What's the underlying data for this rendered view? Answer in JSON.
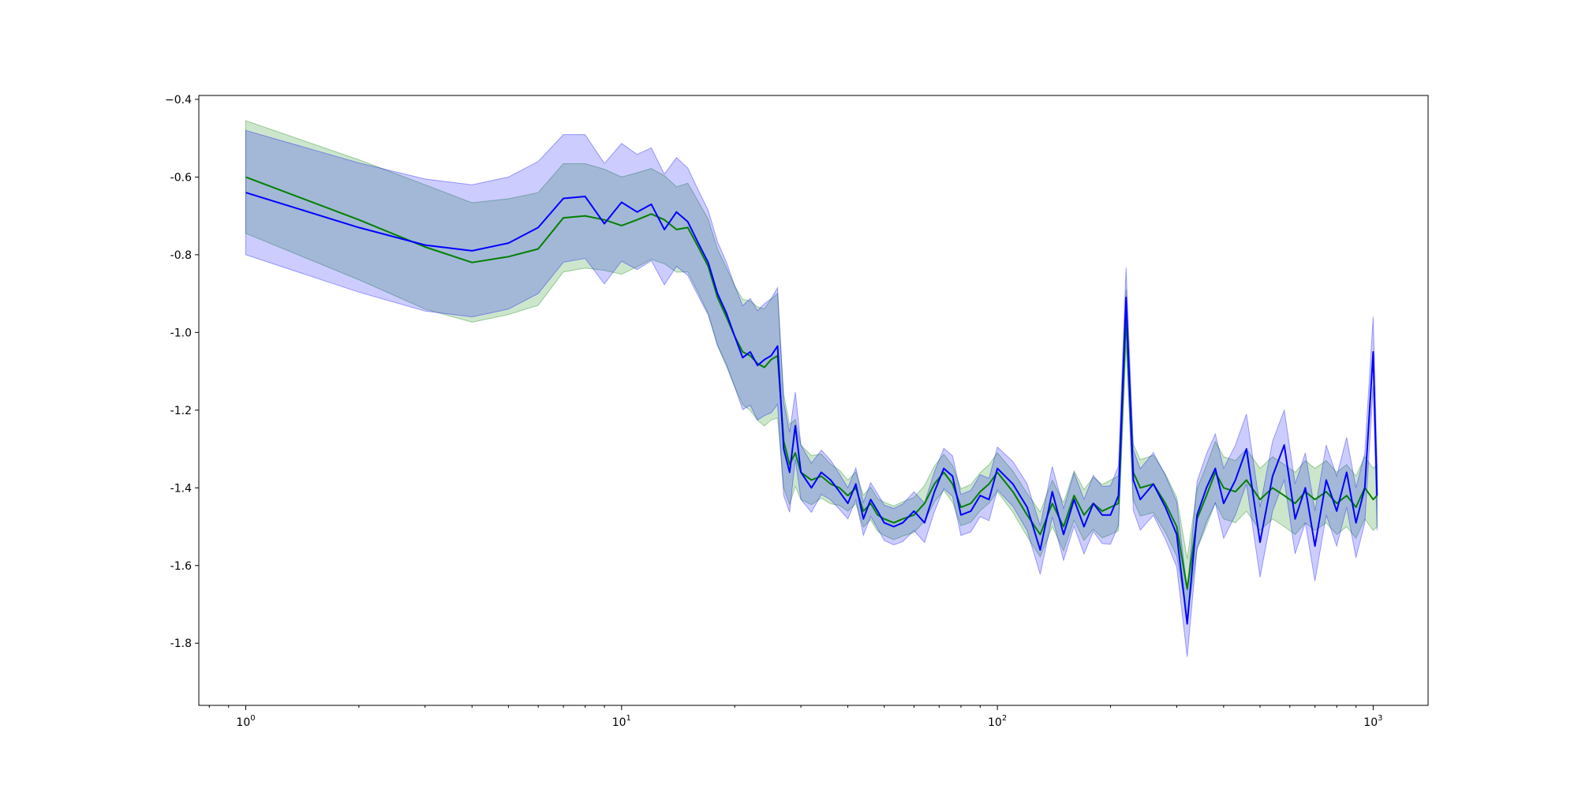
{
  "chart_data": {
    "type": "line",
    "title": "",
    "xlabel": "",
    "ylabel": "",
    "xscale": "log",
    "xlim": [
      0.75,
      1400
    ],
    "ylim": [
      -1.96,
      -0.39
    ],
    "grid": false,
    "legend": "none",
    "yticks": [
      -0.4,
      -0.6,
      -0.8,
      -1.0,
      -1.2,
      -1.4,
      -1.6,
      -1.8
    ],
    "ytick_labels": [
      "−0.4",
      "-0.6",
      "-0.8",
      "-1.0",
      "-1.2",
      "-1.4",
      "-1.6",
      "-1.8"
    ],
    "xticks": [
      1,
      10,
      100,
      1000
    ],
    "xtick_labels": [
      {
        "base": "10",
        "exp": "0"
      },
      {
        "base": "10",
        "exp": "1"
      },
      {
        "base": "10",
        "exp": "2"
      },
      {
        "base": "10",
        "exp": "3"
      }
    ],
    "series": [
      {
        "color": "#008000",
        "band_color": "#008000",
        "band_opacity": 0.2,
        "points": [
          [
            1,
            -0.6
          ],
          [
            2,
            -0.71
          ],
          [
            3,
            -0.78
          ],
          [
            4,
            -0.82
          ],
          [
            5,
            -0.805
          ],
          [
            6,
            -0.785
          ],
          [
            7,
            -0.705
          ],
          [
            8,
            -0.7
          ],
          [
            9,
            -0.71
          ],
          [
            10,
            -0.725
          ],
          [
            11,
            -0.71
          ],
          [
            12,
            -0.695
          ],
          [
            13,
            -0.71
          ],
          [
            14,
            -0.735
          ],
          [
            15,
            -0.73
          ],
          [
            16,
            -0.78
          ],
          [
            17,
            -0.83
          ],
          [
            18,
            -0.91
          ],
          [
            19,
            -0.96
          ],
          [
            20,
            -1.01
          ],
          [
            21,
            -1.05
          ],
          [
            22,
            -1.06
          ],
          [
            23,
            -1.08
          ],
          [
            24,
            -1.09
          ],
          [
            25,
            -1.07
          ],
          [
            26,
            -1.06
          ],
          [
            27,
            -1.28
          ],
          [
            28,
            -1.34
          ],
          [
            29,
            -1.31
          ],
          [
            30,
            -1.36
          ],
          [
            32,
            -1.38
          ],
          [
            34,
            -1.37
          ],
          [
            36,
            -1.39
          ],
          [
            38,
            -1.4
          ],
          [
            40,
            -1.42
          ],
          [
            42,
            -1.4
          ],
          [
            44,
            -1.46
          ],
          [
            46,
            -1.44
          ],
          [
            48,
            -1.47
          ],
          [
            50,
            -1.48
          ],
          [
            53,
            -1.49
          ],
          [
            56,
            -1.48
          ],
          [
            60,
            -1.47
          ],
          [
            64,
            -1.44
          ],
          [
            68,
            -1.39
          ],
          [
            72,
            -1.36
          ],
          [
            76,
            -1.39
          ],
          [
            80,
            -1.45
          ],
          [
            85,
            -1.44
          ],
          [
            90,
            -1.41
          ],
          [
            95,
            -1.39
          ],
          [
            100,
            -1.36
          ],
          [
            110,
            -1.41
          ],
          [
            120,
            -1.47
          ],
          [
            130,
            -1.52
          ],
          [
            140,
            -1.44
          ],
          [
            150,
            -1.5
          ],
          [
            160,
            -1.42
          ],
          [
            170,
            -1.47
          ],
          [
            180,
            -1.44
          ],
          [
            190,
            -1.46
          ],
          [
            200,
            -1.45
          ],
          [
            210,
            -1.44
          ],
          [
            220,
            -0.96
          ],
          [
            230,
            -1.36
          ],
          [
            240,
            -1.4
          ],
          [
            260,
            -1.39
          ],
          [
            280,
            -1.44
          ],
          [
            300,
            -1.5
          ],
          [
            320,
            -1.66
          ],
          [
            340,
            -1.48
          ],
          [
            360,
            -1.42
          ],
          [
            380,
            -1.36
          ],
          [
            400,
            -1.4
          ],
          [
            430,
            -1.41
          ],
          [
            460,
            -1.38
          ],
          [
            500,
            -1.43
          ],
          [
            540,
            -1.4
          ],
          [
            580,
            -1.42
          ],
          [
            620,
            -1.44
          ],
          [
            660,
            -1.41
          ],
          [
            700,
            -1.43
          ],
          [
            750,
            -1.41
          ],
          [
            800,
            -1.44
          ],
          [
            850,
            -1.42
          ],
          [
            900,
            -1.45
          ],
          [
            950,
            -1.4
          ],
          [
            1000,
            -1.43
          ],
          [
            1024,
            -1.42
          ]
        ],
        "band_half_width": [
          [
            1,
            0.145
          ],
          [
            3,
            0.16
          ],
          [
            6,
            0.145
          ],
          [
            9,
            0.13
          ],
          [
            14,
            0.11
          ],
          [
            20,
            0.13
          ],
          [
            26,
            0.16
          ],
          [
            27,
            0.12
          ],
          [
            30,
            0.07
          ],
          [
            40,
            0.04
          ],
          [
            60,
            0.045
          ],
          [
            100,
            0.05
          ],
          [
            200,
            0.07
          ],
          [
            400,
            0.08
          ],
          [
            1024,
            0.08
          ]
        ]
      },
      {
        "color": "#0000ff",
        "band_color": "#0000ff",
        "band_opacity": 0.2,
        "points": [
          [
            1,
            -0.64
          ],
          [
            2,
            -0.73
          ],
          [
            3,
            -0.775
          ],
          [
            4,
            -0.79
          ],
          [
            5,
            -0.77
          ],
          [
            6,
            -0.73
          ],
          [
            7,
            -0.655
          ],
          [
            8,
            -0.65
          ],
          [
            9,
            -0.72
          ],
          [
            10,
            -0.665
          ],
          [
            11,
            -0.69
          ],
          [
            12,
            -0.67
          ],
          [
            13,
            -0.735
          ],
          [
            14,
            -0.69
          ],
          [
            15,
            -0.715
          ],
          [
            16,
            -0.77
          ],
          [
            17,
            -0.82
          ],
          [
            18,
            -0.9
          ],
          [
            19,
            -0.95
          ],
          [
            20,
            -1.01
          ],
          [
            21,
            -1.065
          ],
          [
            22,
            -1.05
          ],
          [
            23,
            -1.085
          ],
          [
            24,
            -1.07
          ],
          [
            25,
            -1.06
          ],
          [
            26,
            -1.035
          ],
          [
            27,
            -1.3
          ],
          [
            28,
            -1.36
          ],
          [
            29,
            -1.24
          ],
          [
            30,
            -1.36
          ],
          [
            32,
            -1.4
          ],
          [
            34,
            -1.36
          ],
          [
            36,
            -1.38
          ],
          [
            38,
            -1.41
          ],
          [
            40,
            -1.44
          ],
          [
            42,
            -1.39
          ],
          [
            44,
            -1.48
          ],
          [
            46,
            -1.43
          ],
          [
            48,
            -1.46
          ],
          [
            50,
            -1.49
          ],
          [
            53,
            -1.5
          ],
          [
            56,
            -1.49
          ],
          [
            60,
            -1.46
          ],
          [
            64,
            -1.49
          ],
          [
            68,
            -1.41
          ],
          [
            72,
            -1.35
          ],
          [
            76,
            -1.37
          ],
          [
            80,
            -1.47
          ],
          [
            85,
            -1.46
          ],
          [
            90,
            -1.42
          ],
          [
            95,
            -1.43
          ],
          [
            100,
            -1.35
          ],
          [
            110,
            -1.39
          ],
          [
            120,
            -1.45
          ],
          [
            130,
            -1.56
          ],
          [
            140,
            -1.41
          ],
          [
            150,
            -1.52
          ],
          [
            160,
            -1.43
          ],
          [
            170,
            -1.5
          ],
          [
            180,
            -1.44
          ],
          [
            190,
            -1.47
          ],
          [
            200,
            -1.47
          ],
          [
            210,
            -1.42
          ],
          [
            220,
            -0.91
          ],
          [
            230,
            -1.38
          ],
          [
            240,
            -1.43
          ],
          [
            260,
            -1.39
          ],
          [
            280,
            -1.45
          ],
          [
            300,
            -1.52
          ],
          [
            320,
            -1.75
          ],
          [
            340,
            -1.47
          ],
          [
            360,
            -1.4
          ],
          [
            380,
            -1.35
          ],
          [
            400,
            -1.44
          ],
          [
            430,
            -1.38
          ],
          [
            460,
            -1.3
          ],
          [
            500,
            -1.54
          ],
          [
            540,
            -1.37
          ],
          [
            580,
            -1.29
          ],
          [
            620,
            -1.48
          ],
          [
            660,
            -1.4
          ],
          [
            700,
            -1.55
          ],
          [
            750,
            -1.38
          ],
          [
            800,
            -1.46
          ],
          [
            850,
            -1.36
          ],
          [
            900,
            -1.49
          ],
          [
            950,
            -1.4
          ],
          [
            1000,
            -1.05
          ],
          [
            1024,
            -1.42
          ]
        ],
        "band_half_width": [
          [
            1,
            0.16
          ],
          [
            3,
            0.17
          ],
          [
            6,
            0.17
          ],
          [
            9,
            0.155
          ],
          [
            14,
            0.14
          ],
          [
            20,
            0.13
          ],
          [
            26,
            0.15
          ],
          [
            27,
            0.12
          ],
          [
            30,
            0.07
          ],
          [
            40,
            0.04
          ],
          [
            60,
            0.05
          ],
          [
            100,
            0.055
          ],
          [
            200,
            0.075
          ],
          [
            400,
            0.09
          ],
          [
            1024,
            0.09
          ]
        ]
      }
    ]
  }
}
